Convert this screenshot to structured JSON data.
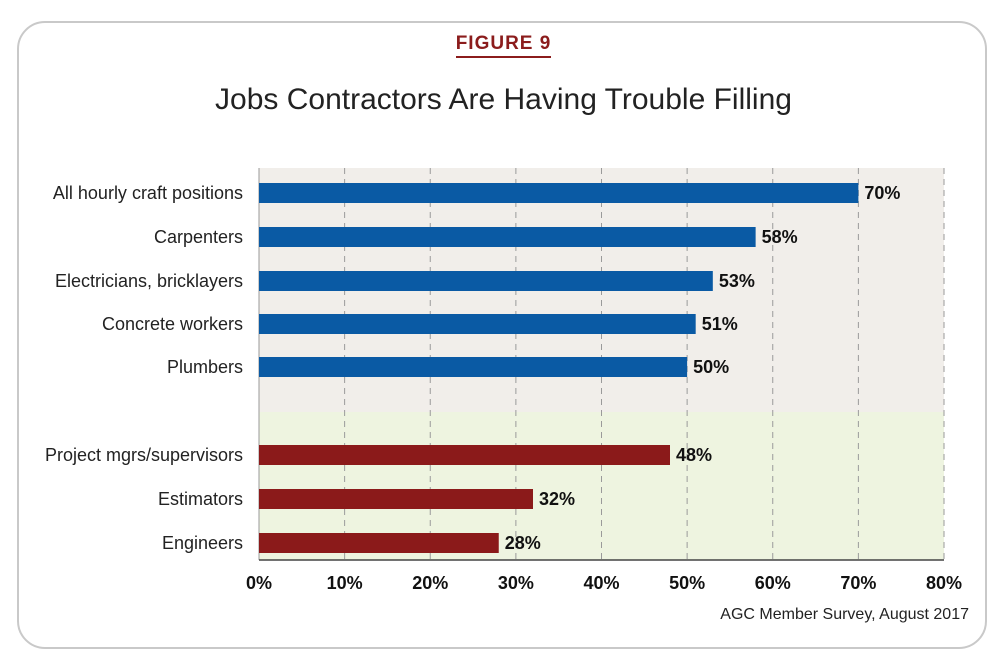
{
  "figure_label": "FIGURE 9",
  "source": "AGC Member Survey, August 2017",
  "colors": {
    "craft_bar": "#0a5aa4",
    "salaried_bar": "#8b1a1a",
    "craft_background": "#f1eeea",
    "salaried_background": "#eef4e0",
    "grid": "#9a9a9a"
  },
  "chart_data": {
    "type": "bar",
    "orientation": "horizontal",
    "title": "Jobs Contractors Are Having Trouble Filling",
    "xlabel": "",
    "ylabel": "",
    "xlim": [
      0,
      80
    ],
    "x_ticks": [
      "0%",
      "10%",
      "20%",
      "30%",
      "40%",
      "50%",
      "60%",
      "70%",
      "80%"
    ],
    "grid": "vertical dashed",
    "groups": [
      {
        "categories": [
          "All hourly craft positions",
          "Carpenters",
          "Electricians, bricklayers",
          "Concrete workers",
          "Plumbers"
        ],
        "values": [
          70,
          58,
          53,
          51,
          50
        ],
        "labels": [
          "70%",
          "58%",
          "53%",
          "51%",
          "50%"
        ]
      },
      {
        "categories": [
          "Project mgrs/supervisors",
          "Estimators",
          "Engineers"
        ],
        "values": [
          48,
          32,
          28
        ],
        "labels": [
          "48%",
          "32%",
          "28%"
        ]
      }
    ]
  }
}
